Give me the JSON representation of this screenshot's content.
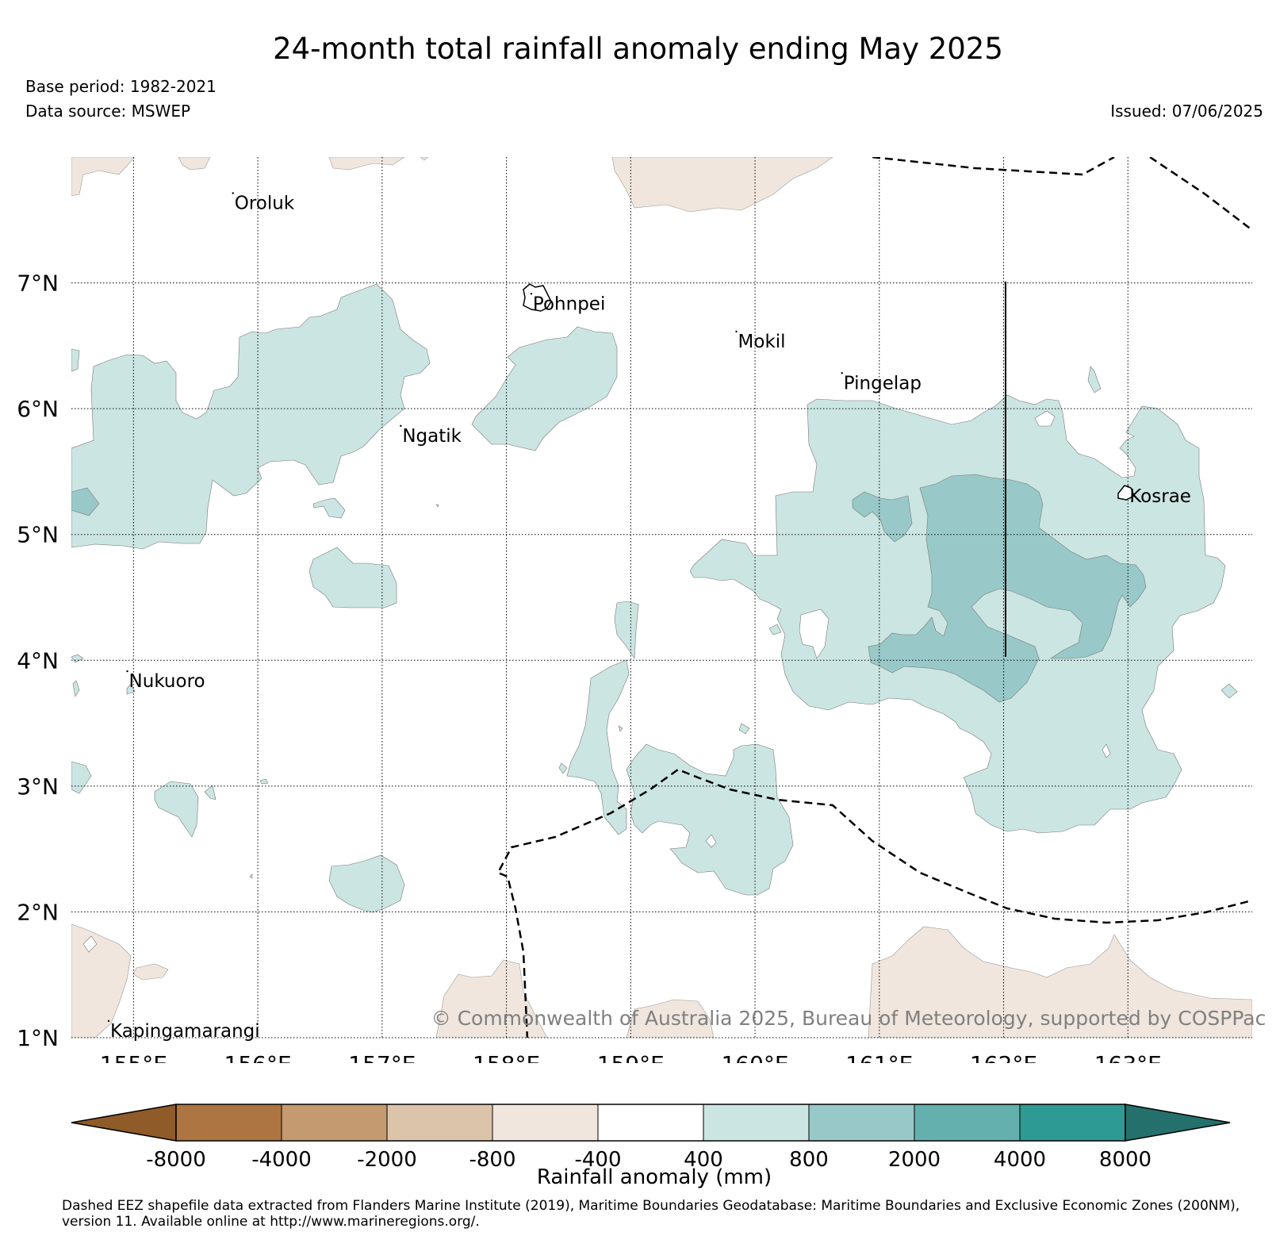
{
  "title": "24-month total rainfall anomaly ending May 2025",
  "base_period": "Base period: 1982-2021",
  "data_source": "Data source: MSWEP",
  "issued": "Issued: 07/06/2025",
  "copyright": "© Commonwealth of Australia 2025, Bureau of Meteorology, supported by COSPPac",
  "map": {
    "lon_range": [
      154.5,
      164.0
    ],
    "lat_range": [
      1.0,
      8.0
    ],
    "lon_ticks": [
      {
        "value": 155,
        "label": "155°E"
      },
      {
        "value": 156,
        "label": "156°E"
      },
      {
        "value": 157,
        "label": "157°E"
      },
      {
        "value": 158,
        "label": "158°E"
      },
      {
        "value": 159,
        "label": "159°E"
      },
      {
        "value": 160,
        "label": "160°E"
      },
      {
        "value": 161,
        "label": "161°E"
      },
      {
        "value": 162,
        "label": "162°E"
      },
      {
        "value": 163,
        "label": "163°E"
      }
    ],
    "lat_ticks": [
      {
        "value": 1,
        "label": "1°N"
      },
      {
        "value": 2,
        "label": "2°N"
      },
      {
        "value": 3,
        "label": "3°N"
      },
      {
        "value": 4,
        "label": "4°N"
      },
      {
        "value": 5,
        "label": "5°N"
      },
      {
        "value": 6,
        "label": "6°N"
      },
      {
        "value": 7,
        "label": "7°N"
      }
    ],
    "gridlines": "dotted",
    "places": [
      {
        "name": "Oroluk",
        "lon": 155.8,
        "lat": 7.65
      },
      {
        "name": "Pohnpei",
        "lon": 158.2,
        "lat": 6.85
      },
      {
        "name": "Mokil",
        "lon": 159.85,
        "lat": 6.55
      },
      {
        "name": "Pingelap",
        "lon": 160.7,
        "lat": 6.22
      },
      {
        "name": "Ngatik",
        "lon": 157.15,
        "lat": 5.8
      },
      {
        "name": "Kosrae",
        "lon": 163.0,
        "lat": 5.32
      },
      {
        "name": "Nukuoro",
        "lon": 154.95,
        "lat": 3.85
      },
      {
        "name": "Kapingamarangi",
        "lon": 154.8,
        "lat": 1.07
      }
    ],
    "colors": {
      "dry_400_800": "#f0e6dd",
      "wet_400_800": "#cbe5e3",
      "wet_800_2000": "#98c9c8",
      "border": "#000000"
    }
  },
  "colorbar": {
    "label": "Rainfall anomaly (mm)",
    "tick_labels": [
      "-8000",
      "-4000",
      "-2000",
      "-800",
      "-400",
      "400",
      "800",
      "2000",
      "4000",
      "8000"
    ],
    "colors": [
      "#8f5b29",
      "#ad7541",
      "#c49a70",
      "#dcc4ab",
      "#f0e6dd",
      "#ffffff",
      "#cbe5e3",
      "#98c9c8",
      "#63b0ae",
      "#2e9a94",
      "#24706c"
    ]
  },
  "footnote": "Dashed EEZ shapefile data extracted from Flanders Marine Institute (2019), Maritime Boundaries Geodatabase: Maritime Boundaries and Exclusive Economic Zones (200NM), version 11. Available online at http://www.marineregions.org/."
}
